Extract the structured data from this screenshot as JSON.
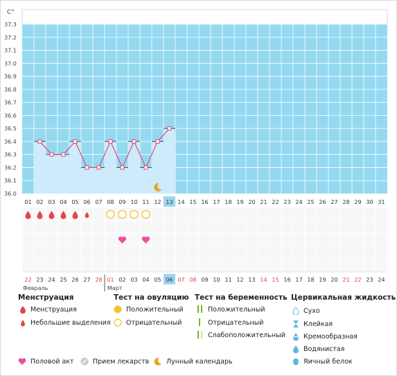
{
  "chart_data": {
    "type": "line",
    "unit_label": "C°",
    "y_ticks": [
      "37.3",
      "37.2",
      "37.1",
      "37.0",
      "36.9",
      "36.8",
      "36.7",
      "36.6",
      "36.5",
      "36.4",
      "36.3",
      "36.2",
      "36.1",
      "36.0"
    ],
    "ylim": [
      36.0,
      37.3
    ],
    "cycle_days": [
      "01",
      "02",
      "03",
      "04",
      "05",
      "06",
      "07",
      "08",
      "09",
      "10",
      "11",
      "12",
      "13",
      "14",
      "15",
      "16",
      "17",
      "18",
      "19",
      "20",
      "21",
      "22",
      "23",
      "24",
      "25",
      "26",
      "27",
      "28",
      "29",
      "30",
      "31"
    ],
    "current_day": "13",
    "temperatures": [
      null,
      36.4,
      36.3,
      36.3,
      36.4,
      36.2,
      36.2,
      36.4,
      36.2,
      36.4,
      36.2,
      36.4,
      36.5
    ],
    "menstruation": [
      "heavy",
      "heavy",
      "heavy",
      "heavy",
      "heavy",
      "light"
    ],
    "ovulation_tests": [
      {
        "day": "08",
        "result": "negative"
      },
      {
        "day": "09",
        "result": "negative"
      },
      {
        "day": "10",
        "result": "negative"
      },
      {
        "day": "11",
        "result": "negative"
      }
    ],
    "intercourse_days": [
      "09",
      "11"
    ],
    "lunar_day": "12",
    "dates": [
      "22",
      "23",
      "24",
      "25",
      "26",
      "27",
      "28",
      "01",
      "02",
      "03",
      "04",
      "05",
      "06",
      "07",
      "08",
      "09",
      "10",
      "11",
      "12",
      "13",
      "14",
      "15",
      "16",
      "17",
      "18",
      "19",
      "20",
      "21",
      "22",
      "23",
      "24"
    ],
    "date_red": [
      true,
      false,
      false,
      false,
      false,
      false,
      true,
      true,
      false,
      false,
      false,
      false,
      false,
      true,
      true,
      false,
      false,
      false,
      false,
      false,
      true,
      true,
      false,
      false,
      false,
      false,
      false,
      true,
      true,
      false,
      false
    ],
    "current_date": "06",
    "months": [
      {
        "label": "Февраль",
        "start": 0
      },
      {
        "label": "Март",
        "start": 7
      }
    ],
    "colors": {
      "background": "#95d9f1",
      "bar": "#cdebfa",
      "line": "#e0467a",
      "grid": "#ffffff",
      "red": "#e0464b",
      "pink": "#ec4fa0",
      "yellow": "#f4c431",
      "moon": "#eea226",
      "green": "#7ab51f",
      "blue": "#60b4e0",
      "highlight": "#99d6f0"
    }
  },
  "legend": {
    "menstruation": {
      "title": "Менструация",
      "items": [
        "Менструация",
        "Небольшие выделения"
      ]
    },
    "ovulation": {
      "title": "Тест на овуляцию",
      "items": [
        "Положительный",
        "Отрицательный"
      ]
    },
    "pregnancy": {
      "title": "Тест на беременность",
      "items": [
        "Положительный",
        "Отрицательный",
        "Слабоположительный"
      ]
    },
    "cervical": {
      "title": "Цервикальная жидкость",
      "items": [
        "Сухо",
        "Клейкая",
        "Кремообразная",
        "Водянистая",
        "Яичный белок"
      ]
    },
    "bottom": [
      "Половой акт",
      "Прием лекарств",
      "Лунный календарь"
    ]
  }
}
